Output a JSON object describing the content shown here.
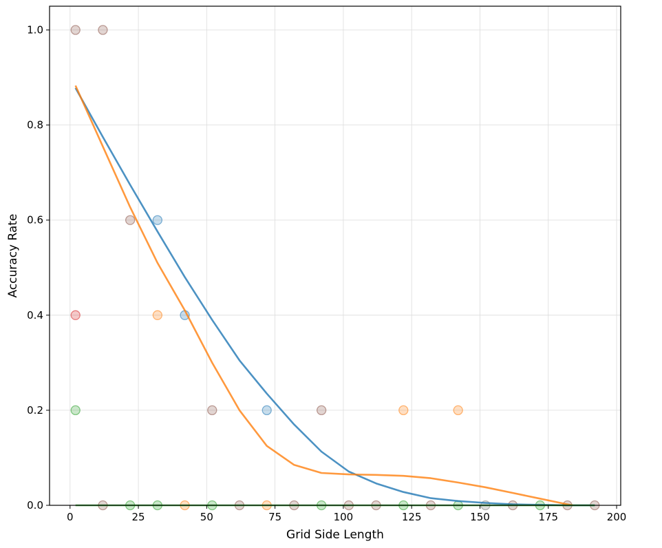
{
  "chart_data": {
    "type": "scatter",
    "title": "",
    "xlabel": "Grid Side Length",
    "ylabel": "Accuracy Rate",
    "xlim": [
      -7.5,
      201.5
    ],
    "ylim": [
      0.0,
      1.05
    ],
    "xticks": [
      0,
      25,
      50,
      75,
      100,
      125,
      150,
      175,
      200
    ],
    "yticks": [
      0.0,
      0.2,
      0.4,
      0.6,
      0.8,
      1.0
    ],
    "xtick_labels": [
      "0",
      "25",
      "50",
      "75",
      "100",
      "125",
      "150",
      "175",
      "200"
    ],
    "ytick_labels": [
      "0.0",
      "0.2",
      "0.4",
      "0.6",
      "0.8",
      "1.0"
    ],
    "grid": true,
    "legend": "none",
    "colors": {
      "blue": "#1f77b4",
      "orange": "#ff7f0e",
      "green": "#2ca02c",
      "red": "#d62728",
      "purple": "#9467bd",
      "brown": "#8c564b",
      "grey": "#7f7f7f"
    },
    "x": [
      2,
      12,
      22,
      32,
      42,
      52,
      62,
      72,
      82,
      92,
      102,
      112,
      122,
      132,
      142,
      152,
      162,
      172,
      182,
      192
    ],
    "points": [
      {
        "x": 2,
        "y": 1.0,
        "color": "#8c564b"
      },
      {
        "x": 12,
        "y": 1.0,
        "color": "#8c564b"
      },
      {
        "x": 22,
        "y": 0.6,
        "color": "#8c564b"
      },
      {
        "x": 32,
        "y": 0.6,
        "color": "#1f77b4"
      },
      {
        "x": 2,
        "y": 0.4,
        "color": "#d62728"
      },
      {
        "x": 32,
        "y": 0.4,
        "color": "#ff7f0e"
      },
      {
        "x": 42,
        "y": 0.4,
        "color": "#1f77b4"
      },
      {
        "x": 2,
        "y": 0.2,
        "color": "#2ca02c"
      },
      {
        "x": 52,
        "y": 0.2,
        "color": "#8c564b"
      },
      {
        "x": 72,
        "y": 0.2,
        "color": "#1f77b4"
      },
      {
        "x": 92,
        "y": 0.2,
        "color": "#8c564b"
      },
      {
        "x": 122,
        "y": 0.2,
        "color": "#ff7f0e"
      },
      {
        "x": 142,
        "y": 0.2,
        "color": "#ff7f0e"
      },
      {
        "x": 12,
        "y": 0.0,
        "color": "#8c564b"
      },
      {
        "x": 22,
        "y": 0.0,
        "color": "#2ca02c"
      },
      {
        "x": 32,
        "y": 0.0,
        "color": "#2ca02c"
      },
      {
        "x": 42,
        "y": 0.0,
        "color": "#ff7f0e"
      },
      {
        "x": 52,
        "y": 0.0,
        "color": "#2ca02c"
      },
      {
        "x": 62,
        "y": 0.0,
        "color": "#8c564b"
      },
      {
        "x": 72,
        "y": 0.0,
        "color": "#ff7f0e"
      },
      {
        "x": 82,
        "y": 0.0,
        "color": "#8c564b"
      },
      {
        "x": 92,
        "y": 0.0,
        "color": "#2ca02c"
      },
      {
        "x": 102,
        "y": 0.0,
        "color": "#8c564b"
      },
      {
        "x": 112,
        "y": 0.0,
        "color": "#8c564b"
      },
      {
        "x": 122,
        "y": 0.0,
        "color": "#2ca02c"
      },
      {
        "x": 132,
        "y": 0.0,
        "color": "#8c564b"
      },
      {
        "x": 142,
        "y": 0.0,
        "color": "#2ca02c"
      },
      {
        "x": 152,
        "y": 0.0,
        "color": "#7f7f7f"
      },
      {
        "x": 162,
        "y": 0.0,
        "color": "#8c564b"
      },
      {
        "x": 172,
        "y": 0.0,
        "color": "#2ca02c"
      },
      {
        "x": 182,
        "y": 0.0,
        "color": "#8c564b"
      },
      {
        "x": 192,
        "y": 0.0,
        "color": "#8c564b"
      }
    ],
    "series": [
      {
        "color": "#1f77b4",
        "x": [
          2,
          12,
          22,
          32,
          42,
          52,
          62,
          72,
          82,
          92,
          102,
          112,
          122,
          132,
          142,
          152,
          162,
          172,
          182,
          192
        ],
        "y": [
          0.878,
          0.775,
          0.674,
          0.576,
          0.48,
          0.39,
          0.305,
          0.235,
          0.17,
          0.113,
          0.071,
          0.046,
          0.028,
          0.015,
          0.009,
          0.005,
          0.002,
          0.001,
          0.0,
          0.0
        ]
      },
      {
        "color": "#ff7f0e",
        "x": [
          2,
          12,
          22,
          32,
          42,
          52,
          62,
          72,
          82,
          92,
          102,
          112,
          122,
          132,
          142,
          152,
          162,
          172,
          182,
          184
        ],
        "y": [
          0.883,
          0.755,
          0.627,
          0.51,
          0.41,
          0.3,
          0.2,
          0.125,
          0.085,
          0.068,
          0.065,
          0.064,
          0.062,
          0.057,
          0.048,
          0.038,
          0.026,
          0.014,
          0.002,
          0.0
        ]
      },
      {
        "color": "#2ca02c",
        "x": [
          2,
          192
        ],
        "y": [
          0.0,
          0.0
        ]
      }
    ]
  }
}
